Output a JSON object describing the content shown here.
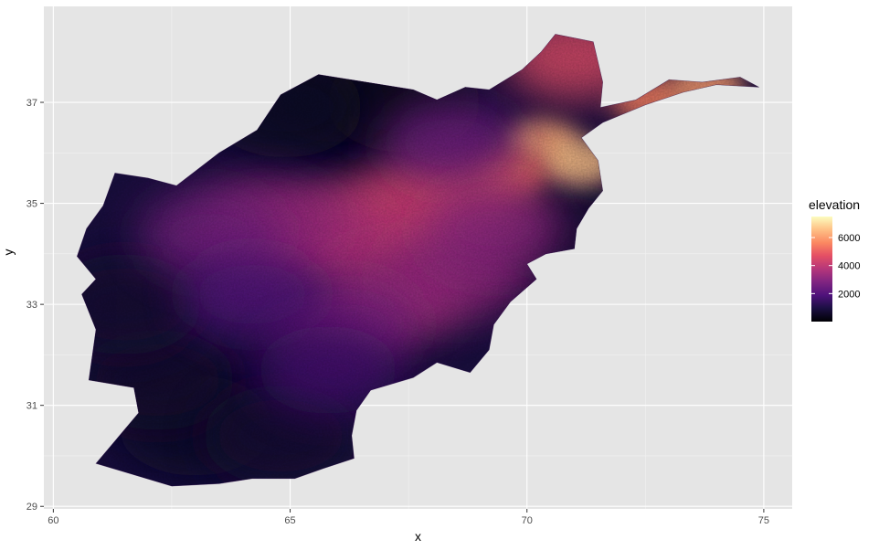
{
  "chart_data": {
    "type": "heatmap",
    "title": "",
    "xlabel": "x",
    "ylabel": "y",
    "xlim": [
      59.8,
      75.6
    ],
    "ylim": [
      28.95,
      38.9
    ],
    "x_ticks": [
      60,
      65,
      70,
      75
    ],
    "y_ticks": [
      29,
      31,
      33,
      35,
      37
    ],
    "grid": true,
    "legend": {
      "title": "elevation",
      "position": "right",
      "range": [
        0,
        7500
      ],
      "breaks": [
        2000,
        4000,
        6000
      ],
      "colormap": "magma"
    },
    "colors": {
      "panel_background": "#e5e5e5",
      "grid_major": "#ffffff",
      "grid_minor": "#f2f2f2",
      "low": "#000004",
      "high": "#fcfdbf"
    },
    "boundary": [
      [
        60.9,
        29.85
      ],
      [
        62.5,
        29.4
      ],
      [
        63.5,
        29.45
      ],
      [
        64.2,
        29.55
      ],
      [
        65.1,
        29.55
      ],
      [
        65.7,
        29.75
      ],
      [
        66.35,
        29.95
      ],
      [
        66.3,
        30.4
      ],
      [
        66.4,
        30.9
      ],
      [
        66.7,
        31.3
      ],
      [
        67.6,
        31.55
      ],
      [
        68.1,
        31.85
      ],
      [
        68.8,
        31.65
      ],
      [
        69.2,
        32.1
      ],
      [
        69.3,
        32.6
      ],
      [
        69.65,
        33.05
      ],
      [
        70.2,
        33.5
      ],
      [
        70.0,
        33.8
      ],
      [
        70.4,
        34.0
      ],
      [
        71.0,
        34.1
      ],
      [
        71.05,
        34.5
      ],
      [
        71.3,
        34.9
      ],
      [
        71.6,
        35.25
      ],
      [
        71.5,
        35.85
      ],
      [
        71.15,
        36.3
      ],
      [
        71.6,
        36.6
      ],
      [
        72.5,
        36.95
      ],
      [
        73.3,
        37.2
      ],
      [
        74.0,
        37.35
      ],
      [
        74.9,
        37.3
      ],
      [
        74.5,
        37.5
      ],
      [
        73.7,
        37.4
      ],
      [
        73.0,
        37.45
      ],
      [
        72.3,
        37.05
      ],
      [
        71.55,
        36.9
      ],
      [
        71.6,
        37.4
      ],
      [
        71.4,
        38.2
      ],
      [
        70.6,
        38.35
      ],
      [
        70.3,
        38.0
      ],
      [
        69.9,
        37.65
      ],
      [
        69.2,
        37.25
      ],
      [
        68.7,
        37.3
      ],
      [
        68.1,
        37.05
      ],
      [
        67.6,
        37.25
      ],
      [
        66.6,
        37.4
      ],
      [
        65.6,
        37.55
      ],
      [
        64.8,
        37.15
      ],
      [
        64.3,
        36.45
      ],
      [
        63.5,
        36.0
      ],
      [
        62.6,
        35.35
      ],
      [
        62.0,
        35.5
      ],
      [
        61.3,
        35.6
      ],
      [
        61.05,
        34.95
      ],
      [
        60.7,
        34.5
      ],
      [
        60.5,
        33.95
      ],
      [
        60.9,
        33.5
      ],
      [
        60.6,
        33.2
      ],
      [
        60.9,
        32.5
      ],
      [
        60.75,
        31.5
      ],
      [
        61.7,
        31.35
      ],
      [
        61.8,
        30.85
      ],
      [
        60.9,
        29.85
      ]
    ],
    "relief_features": [
      {
        "x": 70.3,
        "y": 36.2,
        "elevation": 6200
      },
      {
        "x": 71.1,
        "y": 35.8,
        "elevation": 6600
      },
      {
        "x": 72.6,
        "y": 37.05,
        "elevation": 5600
      },
      {
        "x": 73.8,
        "y": 37.3,
        "elevation": 6000
      },
      {
        "x": 69.6,
        "y": 35.6,
        "elevation": 5400
      },
      {
        "x": 68.6,
        "y": 35.2,
        "elevation": 5000
      },
      {
        "x": 67.6,
        "y": 34.8,
        "elevation": 4600
      },
      {
        "x": 66.6,
        "y": 34.5,
        "elevation": 4000
      },
      {
        "x": 65.5,
        "y": 34.3,
        "elevation": 3600
      },
      {
        "x": 64.5,
        "y": 34.6,
        "elevation": 3200
      },
      {
        "x": 63.3,
        "y": 34.4,
        "elevation": 2600
      },
      {
        "x": 67.2,
        "y": 33.2,
        "elevation": 3600
      },
      {
        "x": 68.5,
        "y": 33.6,
        "elevation": 3200
      },
      {
        "x": 66.2,
        "y": 32.6,
        "elevation": 2700
      },
      {
        "x": 71.0,
        "y": 37.9,
        "elevation": 4600
      },
      {
        "x": 68.4,
        "y": 36.2,
        "elevation": 2400
      },
      {
        "x": 69.3,
        "y": 34.5,
        "elevation": 3000
      },
      {
        "x": 64.2,
        "y": 33.2,
        "elevation": 2000
      },
      {
        "x": 65.8,
        "y": 31.7,
        "elevation": 1600
      }
    ],
    "lowland_features": [
      {
        "x": 63.0,
        "y": 30.6,
        "elevation": 600
      },
      {
        "x": 62.2,
        "y": 31.5,
        "elevation": 650
      },
      {
        "x": 64.8,
        "y": 30.4,
        "elevation": 700
      },
      {
        "x": 66.0,
        "y": 37.2,
        "elevation": 350
      },
      {
        "x": 67.4,
        "y": 37.0,
        "elevation": 400
      },
      {
        "x": 64.9,
        "y": 36.9,
        "elevation": 500
      },
      {
        "x": 61.5,
        "y": 33.0,
        "elevation": 700
      },
      {
        "x": 70.8,
        "y": 34.4,
        "elevation": 700
      }
    ]
  }
}
